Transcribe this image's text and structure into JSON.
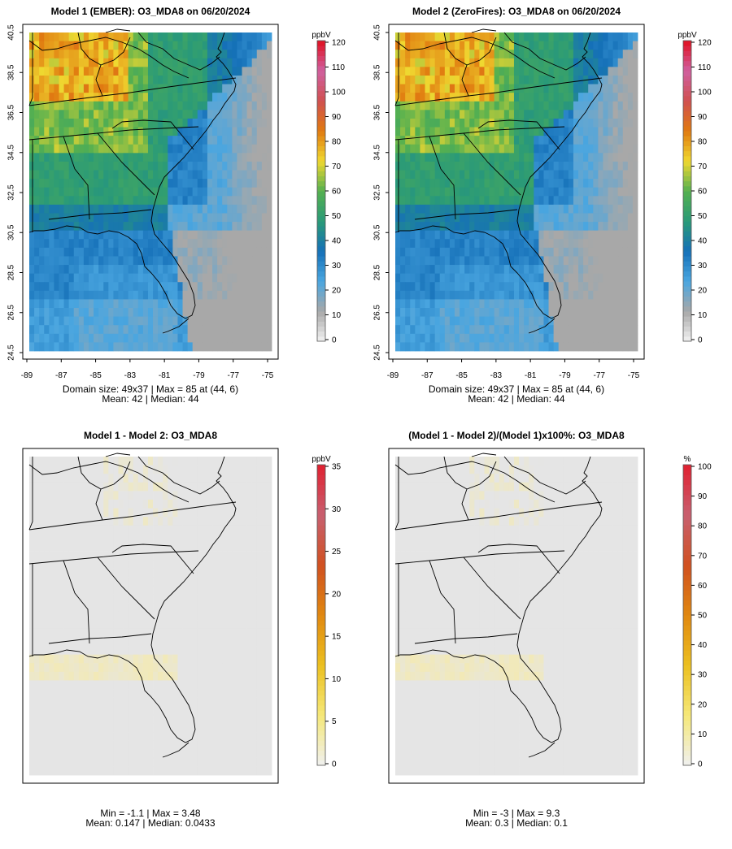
{
  "panels": [
    {
      "id": "model1",
      "title": "Model 1 (EMBER): O3_MDA8 on 06/20/2024",
      "kind": "conc",
      "colorbar": {
        "unit": "ppbV",
        "ticks": [
          0,
          10,
          20,
          30,
          40,
          50,
          60,
          70,
          80,
          90,
          100,
          110,
          120
        ],
        "max": 120
      },
      "axes": true,
      "stats": [
        "Domain size: 49x37 | Max = 85 at (44, 6)",
        "Mean: 42 |  Median: 44"
      ]
    },
    {
      "id": "model2",
      "title": "Model 2 (ZeroFires): O3_MDA8 on 06/20/2024",
      "kind": "conc",
      "colorbar": {
        "unit": "ppbV",
        "ticks": [
          0,
          10,
          20,
          30,
          40,
          50,
          60,
          70,
          80,
          90,
          100,
          110,
          120
        ],
        "max": 120
      },
      "axes": true,
      "stats": [
        "Domain size: 49x37 | Max = 85 at (44, 6)",
        "Mean: 42 |  Median: 44"
      ]
    },
    {
      "id": "diff",
      "title": "Model 1 - Model 2: O3_MDA8",
      "kind": "diff",
      "colorbar": {
        "unit": "ppbV",
        "ticks": [
          0,
          5,
          10,
          15,
          20,
          25,
          30,
          35
        ],
        "max": 35
      },
      "axes": false,
      "stats": [
        "Min = -1.1 | Max = 3.48",
        "Mean: 0.147 |  Median: 0.0433"
      ]
    },
    {
      "id": "pctdiff",
      "title": "(Model 1 - Model 2)/(Model 1)x100%: O3_MDA8",
      "kind": "pct",
      "colorbar": {
        "unit": "%",
        "ticks": [
          0,
          10,
          20,
          30,
          40,
          50,
          60,
          70,
          80,
          90,
          100
        ],
        "max": 100
      },
      "axes": false,
      "stats": [
        "Min = -3 | Max = 9.3",
        "Mean: 0.3 |  Median: 0.1"
      ]
    }
  ],
  "axes": {
    "lat_ticks": [
      "24.5",
      "26.5",
      "28.5",
      "30.5",
      "32.5",
      "34.5",
      "36.5",
      "38.5",
      "40.5"
    ],
    "lon_ticks": [
      "-89",
      "-87",
      "-85",
      "-83",
      "-81",
      "-79",
      "-77",
      "-75"
    ]
  },
  "colors": {
    "conc_stops": [
      "#f2f2f2",
      "#a8a8a8",
      "#4aa6e0",
      "#1570b8",
      "#2a9a78",
      "#55b050",
      "#f0d830",
      "#e07a10",
      "#d05050",
      "#d060a0",
      "#e01020"
    ],
    "diff_stops": [
      "#f0f0f0",
      "#f5e878",
      "#ecc020",
      "#e08810",
      "#d05020",
      "#c86070",
      "#e02030"
    ]
  }
}
